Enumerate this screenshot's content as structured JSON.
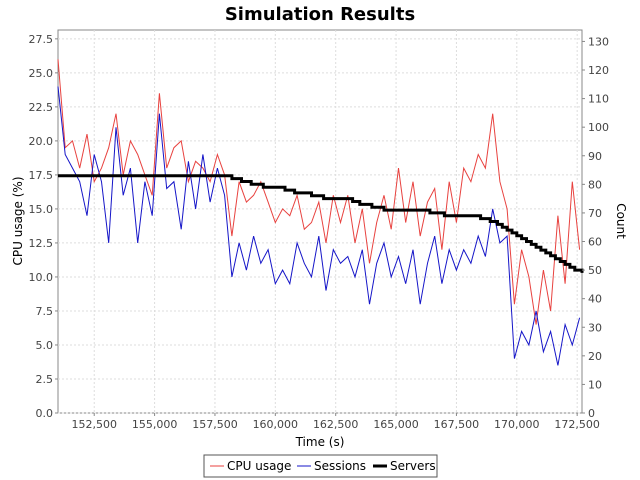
{
  "chart_data": {
    "type": "line",
    "title": "Simulation Results",
    "xlabel": "Time (s)",
    "ylabel": "CPU usage (%)",
    "y2label": "Count",
    "xlim": [
      151000,
      172700
    ],
    "ylim": [
      0,
      28.15
    ],
    "y2lim": [
      0,
      134
    ],
    "xticks": [
      "152,500",
      "155,000",
      "157,500",
      "160,000",
      "162,500",
      "165,000",
      "167,500",
      "170,000",
      "172,500"
    ],
    "yticks": [
      "0.0",
      "2.5",
      "5.0",
      "7.5",
      "10.0",
      "12.5",
      "15.0",
      "17.5",
      "20.0",
      "22.5",
      "25.0",
      "27.5"
    ],
    "y2ticks": [
      "0",
      "10",
      "20",
      "30",
      "40",
      "50",
      "60",
      "70",
      "80",
      "90",
      "100",
      "110",
      "120",
      "130"
    ],
    "grid": true,
    "legend_position": "bottom",
    "colors": {
      "cpu": "#e8423f",
      "sessions": "#1515c8",
      "servers": "#000000"
    },
    "series": [
      {
        "name": "CPU usage",
        "axis": "left",
        "x": [
          151000,
          151300,
          151600,
          151900,
          152200,
          152500,
          152800,
          153100,
          153400,
          153700,
          154000,
          154300,
          154600,
          154900,
          155200,
          155500,
          155800,
          156100,
          156400,
          156700,
          157000,
          157300,
          157600,
          157900,
          158200,
          158500,
          158800,
          159100,
          159400,
          159700,
          160000,
          160300,
          160600,
          160900,
          161200,
          161500,
          161800,
          162100,
          162400,
          162700,
          163000,
          163300,
          163600,
          163900,
          164200,
          164500,
          164800,
          165100,
          165400,
          165700,
          166000,
          166300,
          166600,
          166900,
          167200,
          167500,
          167800,
          168100,
          168400,
          168700,
          169000,
          169300,
          169600,
          169900,
          170200,
          170500,
          170800,
          171100,
          171400,
          171700,
          172000,
          172300,
          172600
        ],
        "y": [
          26,
          19.5,
          20,
          18,
          20.5,
          17,
          18,
          19.5,
          22,
          17.5,
          20,
          19,
          17.5,
          16,
          23.5,
          18,
          19.5,
          20,
          17,
          18.5,
          18,
          17,
          19,
          17.5,
          13,
          17,
          15.5,
          16,
          17,
          15.5,
          14,
          15,
          14.5,
          16,
          13.5,
          14,
          15.5,
          12.5,
          16,
          14,
          16,
          12.5,
          15,
          11,
          14,
          16,
          13.5,
          18,
          14,
          17,
          13,
          15.5,
          16.5,
          12,
          17,
          14,
          18,
          17,
          19,
          18,
          22,
          17,
          15,
          8,
          12,
          10,
          6.5,
          10.5,
          7.5,
          14.5,
          9.5,
          17,
          12
        ]
      },
      {
        "name": "Sessions",
        "axis": "left",
        "x": [
          151000,
          151300,
          151600,
          151900,
          152200,
          152500,
          152800,
          153100,
          153400,
          153700,
          154000,
          154300,
          154600,
          154900,
          155200,
          155500,
          155800,
          156100,
          156400,
          156700,
          157000,
          157300,
          157600,
          157900,
          158200,
          158500,
          158800,
          159100,
          159400,
          159700,
          160000,
          160300,
          160600,
          160900,
          161200,
          161500,
          161800,
          162100,
          162400,
          162700,
          163000,
          163300,
          163600,
          163900,
          164200,
          164500,
          164800,
          165100,
          165400,
          165700,
          166000,
          166300,
          166600,
          166900,
          167200,
          167500,
          167800,
          168100,
          168400,
          168700,
          169000,
          169300,
          169600,
          169900,
          170200,
          170500,
          170800,
          171100,
          171400,
          171700,
          172000,
          172300,
          172600
        ],
        "y": [
          24,
          19,
          18,
          17,
          14.5,
          19,
          17,
          12.5,
          21,
          16,
          18,
          12.5,
          17,
          14.5,
          22,
          16.5,
          17,
          13.5,
          18.5,
          15,
          19,
          15.5,
          18,
          16,
          10,
          12.5,
          10.5,
          13,
          11,
          12,
          9.5,
          10.5,
          9.5,
          12.5,
          11,
          10,
          13,
          9,
          12,
          11,
          11.5,
          10,
          12,
          8,
          11,
          12.5,
          10,
          11.5,
          9.5,
          12,
          8,
          11,
          13,
          9.5,
          12,
          10.5,
          12,
          11,
          13,
          11.5,
          15,
          12.5,
          13,
          4,
          6,
          5,
          7.5,
          4.5,
          6,
          3.5,
          6.5,
          5,
          7
        ]
      },
      {
        "name": "Servers",
        "axis": "right",
        "steps": [
          [
            151000,
            83
          ],
          [
            158000,
            83
          ],
          [
            158200,
            82
          ],
          [
            158400,
            82
          ],
          [
            158600,
            81
          ],
          [
            159000,
            80
          ],
          [
            159500,
            79
          ],
          [
            160000,
            79
          ],
          [
            160400,
            78
          ],
          [
            160800,
            77
          ],
          [
            161500,
            76
          ],
          [
            162000,
            75
          ],
          [
            163200,
            74
          ],
          [
            163500,
            73
          ],
          [
            164000,
            72
          ],
          [
            164500,
            71
          ],
          [
            166400,
            70
          ],
          [
            167000,
            69
          ],
          [
            168500,
            68
          ],
          [
            168900,
            67
          ],
          [
            169200,
            66
          ],
          [
            169400,
            65
          ],
          [
            169600,
            64
          ],
          [
            169800,
            63
          ],
          [
            170000,
            62
          ],
          [
            170200,
            61
          ],
          [
            170400,
            60
          ],
          [
            170600,
            59
          ],
          [
            170800,
            58
          ],
          [
            171000,
            57
          ],
          [
            171200,
            56
          ],
          [
            171400,
            55
          ],
          [
            171600,
            54
          ],
          [
            171800,
            53
          ],
          [
            172000,
            52
          ],
          [
            172200,
            51
          ],
          [
            172400,
            50
          ],
          [
            172700,
            49
          ]
        ]
      }
    ]
  }
}
